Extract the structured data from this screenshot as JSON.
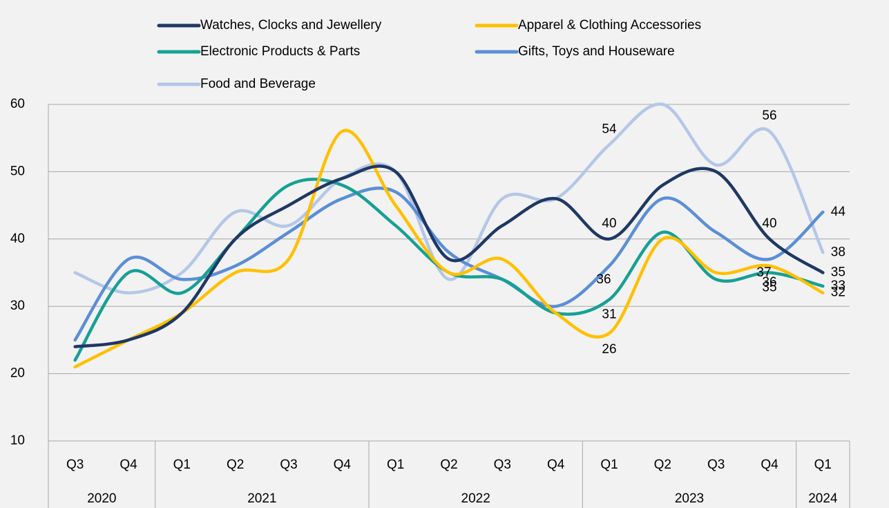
{
  "chart_data": {
    "type": "line",
    "categories": [
      "Q3",
      "Q4",
      "Q1",
      "Q2",
      "Q3",
      "Q4",
      "Q1",
      "Q2",
      "Q3",
      "Q4",
      "Q1",
      "Q2",
      "Q3",
      "Q4",
      "Q1"
    ],
    "years": [
      "2020",
      null,
      "2021",
      null,
      null,
      null,
      "2022",
      null,
      null,
      null,
      "2023",
      null,
      null,
      null,
      "2024"
    ],
    "series": [
      {
        "name": "Watches, Clocks and Jewellery",
        "color": "#1f3864",
        "values": [
          24,
          25,
          29,
          40,
          45,
          49,
          50,
          37,
          42,
          46,
          40,
          48,
          50,
          40,
          35
        ],
        "label_indices": [
          10,
          13,
          14
        ]
      },
      {
        "name": "Apparel & Clothing Accessories",
        "color": "#ffc000",
        "values": [
          21,
          25,
          29,
          35,
          37,
          56,
          45,
          35,
          37,
          29,
          26,
          40,
          35,
          36,
          32
        ],
        "label_indices": [
          10,
          13,
          14
        ]
      },
      {
        "name": "Electronic Products & Parts",
        "color": "#17a095",
        "values": [
          22,
          35,
          32,
          40,
          48,
          48,
          42,
          35,
          34,
          29,
          31,
          41,
          34,
          35,
          33
        ],
        "label_indices": [
          10,
          13,
          14
        ]
      },
      {
        "name": "Gifts, Toys and Houseware",
        "color": "#5b8fd6",
        "values": [
          25,
          37,
          34,
          36,
          41,
          46,
          47,
          38,
          34,
          30,
          36,
          46,
          41,
          37,
          44
        ],
        "label_indices": [
          10,
          13,
          14
        ]
      },
      {
        "name": "Food and Beverage",
        "color": "#b4c7e7",
        "values": [
          35,
          32,
          35,
          44,
          42,
          49,
          50,
          34,
          46,
          46,
          54,
          60,
          51,
          56,
          38
        ],
        "label_indices": [
          10,
          13,
          14
        ]
      }
    ],
    "ylim": [
      10,
      60
    ],
    "yticks": [
      10,
      20,
      30,
      40,
      50,
      60
    ],
    "grid": true
  }
}
